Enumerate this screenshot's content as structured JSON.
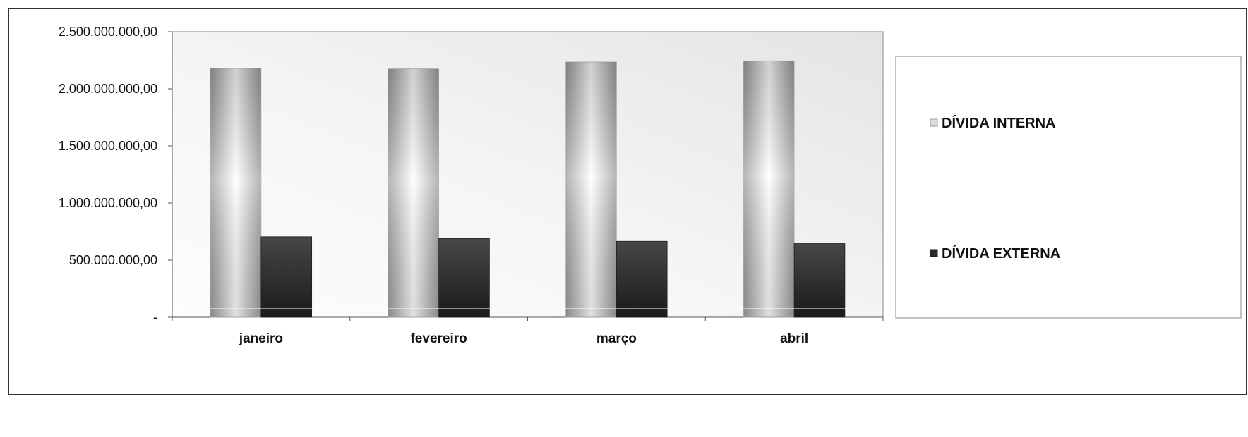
{
  "chart_data": {
    "type": "bar",
    "title": "",
    "xlabel": "",
    "ylabel": "",
    "categories": [
      "janeiro",
      "fevereiro",
      "março",
      "abril"
    ],
    "series": [
      {
        "name": "DÍVIDA INTERNA",
        "values": [
          2180000000,
          2175000000,
          2235000000,
          2245000000
        ],
        "color": "#d9d9d9"
      },
      {
        "name": "DÍVIDA EXTERNA",
        "values": [
          705000000,
          690000000,
          665000000,
          645000000
        ],
        "color": "#2b2b2b"
      }
    ],
    "ylim": [
      0,
      2500000000
    ],
    "yticks": [
      {
        "value": 0,
        "label": "-"
      },
      {
        "value": 500000000,
        "label": "500.000.000,00"
      },
      {
        "value": 1000000000,
        "label": "1.000.000.000,00"
      },
      {
        "value": 1500000000,
        "label": "1.500.000.000,00"
      },
      {
        "value": 2000000000,
        "label": "2.000.000.000,00"
      },
      {
        "value": 2500000000,
        "label": "2.500.000.000,00"
      }
    ],
    "grid": false,
    "legend_position": "right"
  }
}
